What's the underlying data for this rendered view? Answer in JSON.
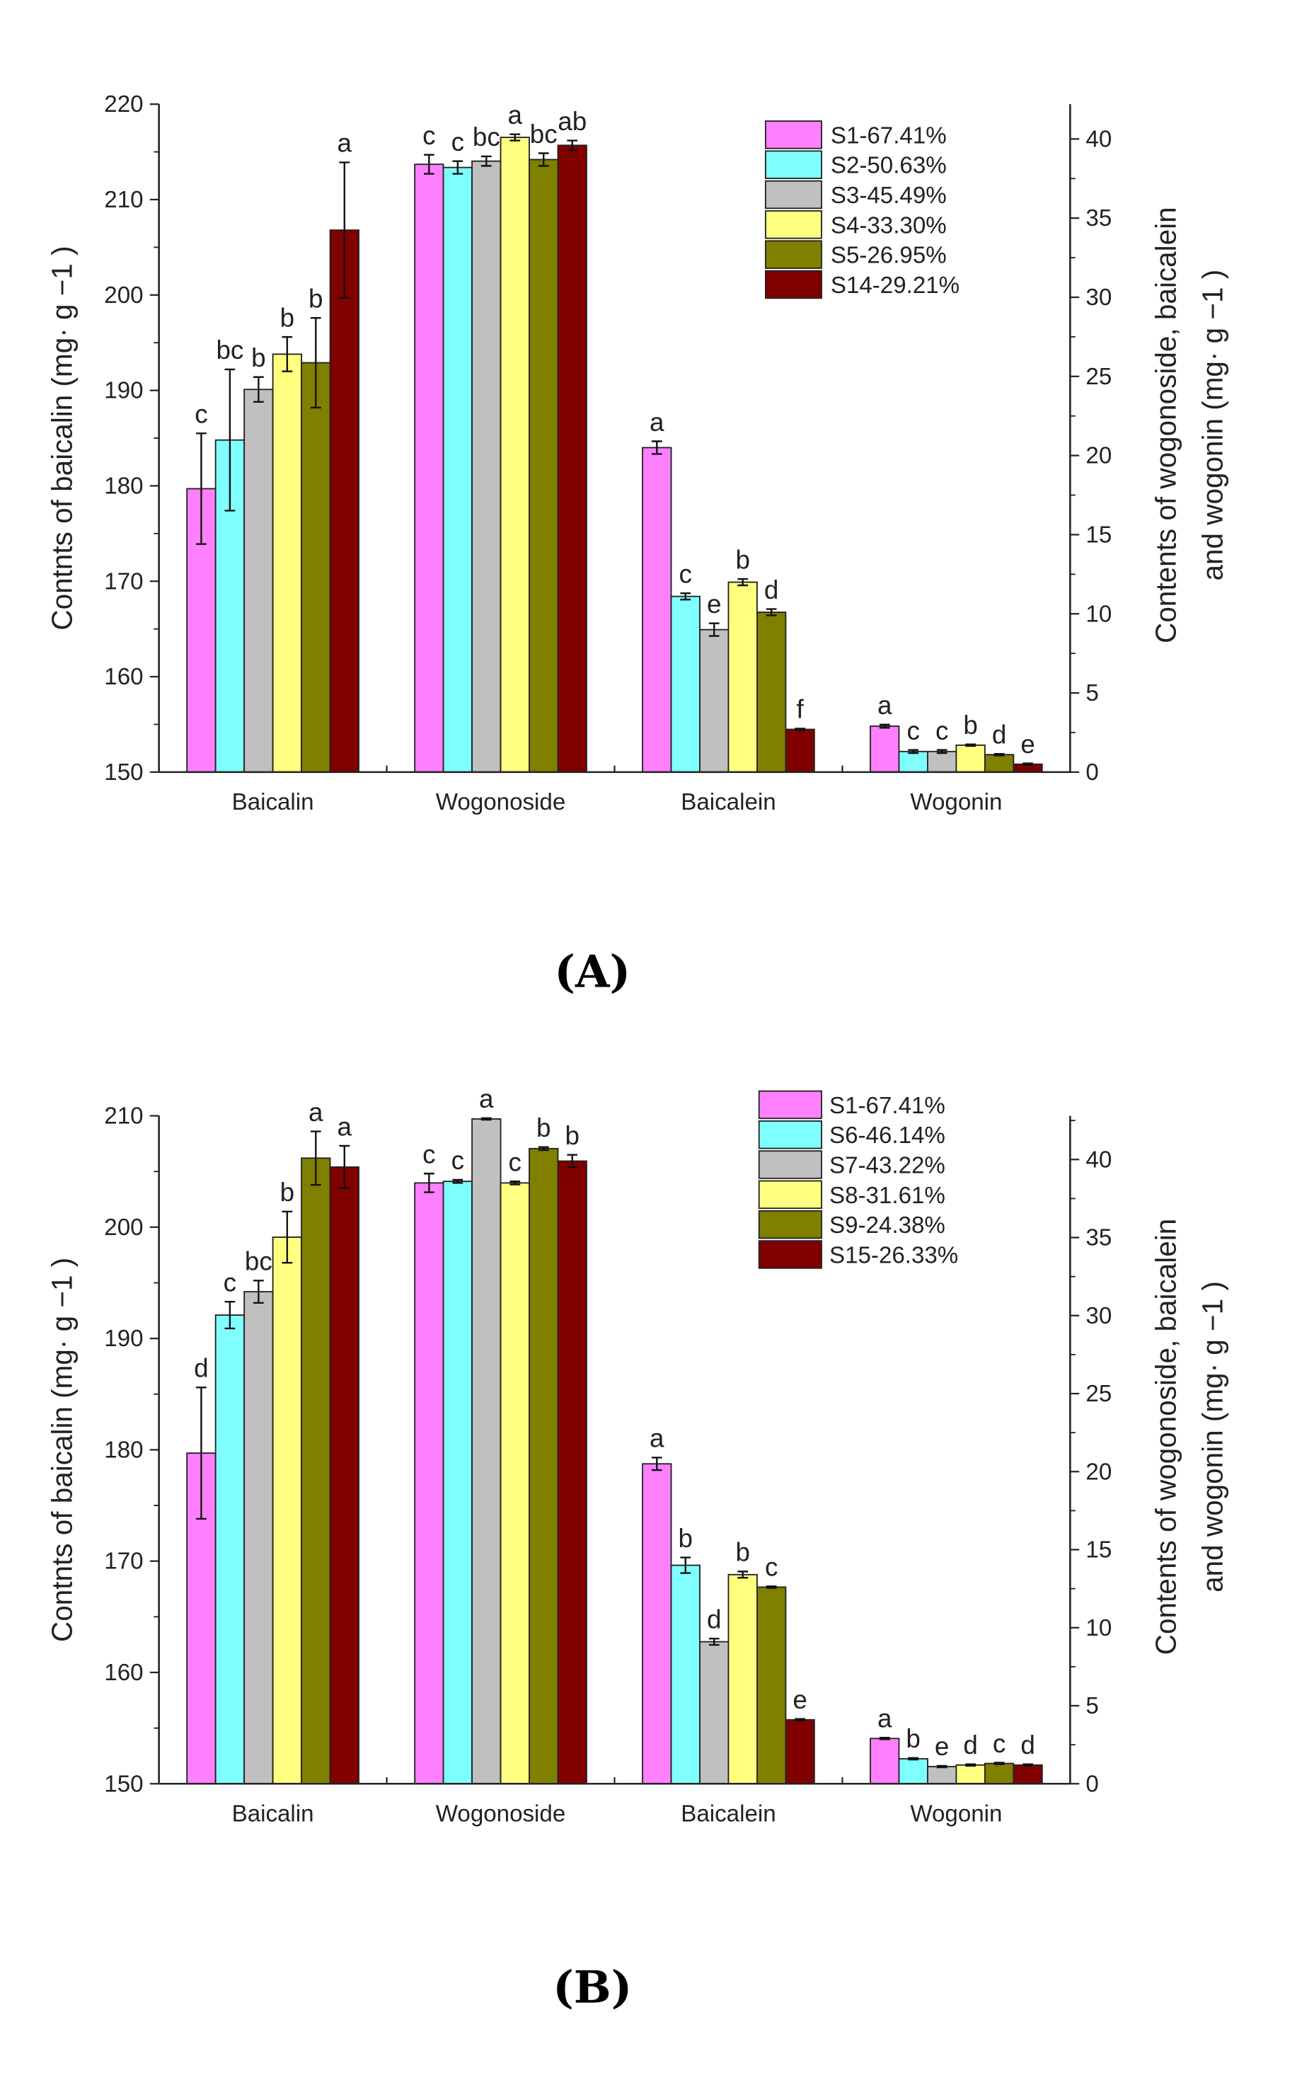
{
  "chart_data": [
    {
      "type": "bar",
      "panel_label": "(A)",
      "categories": [
        "Baicalin",
        "Wogonoside",
        "Baicalein",
        "Wogonin"
      ],
      "category_axis": [
        "left",
        "right",
        "right",
        "right"
      ],
      "ylabel_left": "Contnts of baicalin (mg· g −1 )",
      "ylabel_right": [
        "Contents of wogonoside, baicalein",
        "and wogonin (mg· g −1 )"
      ],
      "ylim_left": [
        150,
        220
      ],
      "yticks_left": [
        150,
        160,
        170,
        180,
        190,
        200,
        210,
        220
      ],
      "ylim_right": [
        0,
        42.2
      ],
      "yticks_right": [
        0,
        5,
        10,
        15,
        20,
        25,
        30,
        35,
        40
      ],
      "legend_position": "top-right",
      "series": [
        {
          "name": "S1-67.41%",
          "color": "#FF80FF",
          "values": [
            179.7,
            38.4,
            20.5,
            2.9
          ],
          "errors": [
            5.8,
            0.6,
            0.4,
            0.1
          ],
          "letters": [
            "c",
            "c",
            "a",
            "a"
          ]
        },
        {
          "name": "S2-50.63%",
          "color": "#80FFFF",
          "values": [
            184.8,
            38.2,
            11.1,
            1.3
          ],
          "errors": [
            7.4,
            0.4,
            0.2,
            0.1
          ],
          "letters": [
            "bc",
            "c",
            "c",
            "c"
          ]
        },
        {
          "name": "S3-45.49%",
          "color": "#C0C0C0",
          "values": [
            190.1,
            38.6,
            9.0,
            1.3
          ],
          "errors": [
            1.3,
            0.3,
            0.4,
            0.1
          ],
          "letters": [
            "b",
            "bc",
            "e",
            "c"
          ]
        },
        {
          "name": "S4-33.30%",
          "color": "#FFFF80",
          "values": [
            193.8,
            40.1,
            12.0,
            1.7
          ],
          "errors": [
            1.8,
            0.2,
            0.2,
            0.05
          ],
          "letters": [
            "b",
            "a",
            "b",
            "b"
          ]
        },
        {
          "name": "S5-26.95%",
          "color": "#808000",
          "values": [
            192.9,
            38.7,
            10.1,
            1.1
          ],
          "errors": [
            4.7,
            0.4,
            0.2,
            0.05
          ],
          "letters": [
            "b",
            "bc",
            "d",
            "d"
          ]
        },
        {
          "name": "S14-29.21%",
          "color": "#800000",
          "values": [
            206.8,
            39.6,
            2.7,
            0.5
          ],
          "errors": [
            7.1,
            0.3,
            0.05,
            0.05
          ],
          "letters": [
            "a",
            "ab",
            "f",
            "e"
          ]
        }
      ]
    },
    {
      "type": "bar",
      "panel_label": "(B)",
      "categories": [
        "Baicalin",
        "Wogonoside",
        "Baicalein",
        "Wogonin"
      ],
      "category_axis": [
        "left",
        "right",
        "right",
        "right"
      ],
      "ylabel_left": "Contnts of baicalin (mg· g −1 )",
      "ylabel_right": [
        "Contents of wogonoside, baicalein",
        "and wogonin (mg· g −1 )"
      ],
      "ylim_left": [
        150,
        210
      ],
      "yticks_left": [
        150,
        160,
        170,
        180,
        190,
        200,
        210
      ],
      "ylim_right": [
        0,
        42.8
      ],
      "yticks_right": [
        0,
        5,
        10,
        15,
        20,
        25,
        30,
        35,
        40
      ],
      "legend_position": "top-right",
      "series": [
        {
          "name": "S1-67.41%",
          "color": "#FF80FF",
          "values": [
            179.7,
            38.5,
            20.5,
            2.9
          ],
          "errors": [
            5.9,
            0.6,
            0.4,
            0.05
          ],
          "letters": [
            "d",
            "c",
            "a",
            "a"
          ]
        },
        {
          "name": "S6-46.14%",
          "color": "#80FFFF",
          "values": [
            192.1,
            38.6,
            14.0,
            1.6
          ],
          "errors": [
            1.2,
            0.1,
            0.5,
            0.05
          ],
          "letters": [
            "c",
            "c",
            "b",
            "b"
          ]
        },
        {
          "name": "S7-43.22%",
          "color": "#C0C0C0",
          "values": [
            194.2,
            42.6,
            9.1,
            1.1
          ],
          "errors": [
            1.0,
            0.05,
            0.2,
            0.05
          ],
          "letters": [
            "bc",
            "a",
            "d",
            "e"
          ]
        },
        {
          "name": "S8-31.61%",
          "color": "#FFFF80",
          "values": [
            199.1,
            38.5,
            13.4,
            1.2
          ],
          "errors": [
            2.3,
            0.1,
            0.2,
            0.05
          ],
          "letters": [
            "b",
            "c",
            "b",
            "d"
          ]
        },
        {
          "name": "S9-24.38%",
          "color": "#808000",
          "values": [
            206.2,
            40.7,
            12.6,
            1.3
          ],
          "errors": [
            2.4,
            0.1,
            0.05,
            0.05
          ],
          "letters": [
            "a",
            "b",
            "c",
            "c"
          ]
        },
        {
          "name": "S15-26.33%",
          "color": "#800000",
          "values": [
            205.4,
            39.9,
            4.1,
            1.2
          ],
          "errors": [
            1.9,
            0.4,
            0.05,
            0.05
          ],
          "letters": [
            "a",
            "b",
            "e",
            "d"
          ]
        }
      ]
    }
  ]
}
